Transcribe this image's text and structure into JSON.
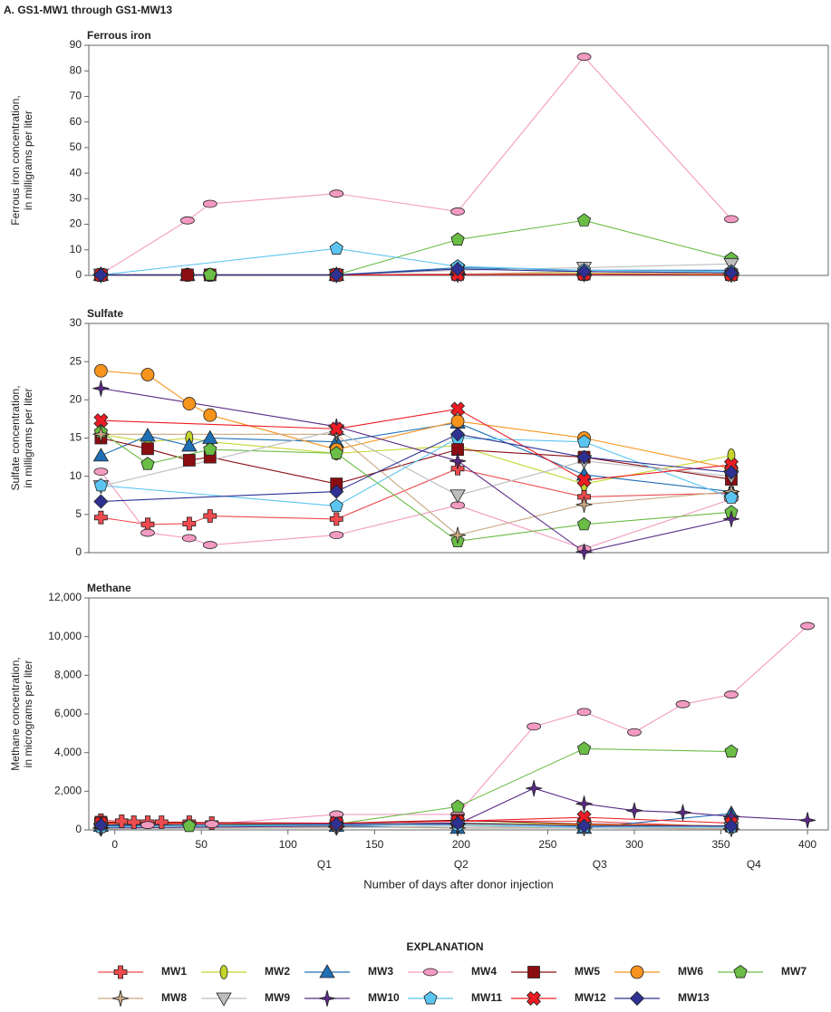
{
  "title": "A. GS1-MW1 through GS1-MW13",
  "legend": {
    "title": "EXPLANATION",
    "entries": [
      {
        "name": "MW1",
        "color": "#ee4b4f",
        "marker": "plus"
      },
      {
        "name": "MW2",
        "color": "#c5d52b",
        "marker": "ellipse-v"
      },
      {
        "name": "MW3",
        "color": "#1f6fb5",
        "marker": "triangle"
      },
      {
        "name": "MW4",
        "color": "#f39ac2",
        "marker": "ellipse-h"
      },
      {
        "name": "MW5",
        "color": "#8b0d12",
        "marker": "square"
      },
      {
        "name": "MW6",
        "color": "#f7941d",
        "marker": "circle"
      },
      {
        "name": "MW7",
        "color": "#6abd45",
        "marker": "pentagon"
      },
      {
        "name": "MW8",
        "color": "#c9a883",
        "marker": "star4"
      },
      {
        "name": "MW9",
        "color": "#bdbdbd",
        "marker": "triangle-down"
      },
      {
        "name": "MW10",
        "color": "#5b2a86",
        "marker": "star4"
      },
      {
        "name": "MW11",
        "color": "#5bc5f2",
        "marker": "pentagon"
      },
      {
        "name": "MW12",
        "color": "#ed1c24",
        "marker": "x"
      },
      {
        "name": "MW13",
        "color": "#2e3192",
        "marker": "diamond"
      }
    ]
  },
  "chart_data": [
    {
      "type": "line",
      "title": "Ferrous iron",
      "ylabel": [
        "Ferrous iron concentration,",
        "in milligrams per liter"
      ],
      "xlim": [
        -15,
        412
      ],
      "ylim": [
        0,
        90
      ],
      "yticks": [
        0,
        10,
        20,
        30,
        40,
        50,
        60,
        70,
        80,
        90
      ],
      "series": [
        {
          "x": [
            -8,
            42,
            55,
            128,
            198,
            271,
            356
          ],
          "values": [
            0.2,
            0.2,
            0.2,
            0.2,
            0.5,
            0.5,
            0.3
          ]
        },
        {
          "x": [
            -8,
            128,
            198,
            271,
            356
          ],
          "values": [
            0.3,
            0.2,
            0.5,
            0.8,
            0.5
          ]
        },
        {
          "x": [
            -8,
            42,
            128,
            198,
            271,
            356
          ],
          "values": [
            0.2,
            0.2,
            0.2,
            3,
            2,
            2
          ]
        },
        {
          "x": [
            -8,
            42,
            55,
            128,
            198,
            271,
            356
          ],
          "values": [
            0.5,
            21.5,
            28,
            32,
            25,
            85.5,
            22
          ]
        },
        {
          "x": [
            -8,
            42,
            55,
            128,
            198,
            271,
            356
          ],
          "values": [
            0.2,
            0.2,
            0.2,
            0.2,
            0.4,
            0.5,
            0.3
          ]
        },
        {
          "x": [
            -8,
            128,
            198,
            271,
            356
          ],
          "values": [
            0.2,
            0.2,
            0.5,
            0.5,
            0.3
          ]
        },
        {
          "x": [
            -8,
            55,
            128,
            198,
            271,
            356
          ],
          "values": [
            0.2,
            0.3,
            0.2,
            14,
            21.5,
            6.5
          ]
        },
        {
          "x": [
            -8,
            128,
            198,
            271,
            356
          ],
          "values": [
            0.2,
            0.2,
            0.5,
            1.5,
            1
          ]
        },
        {
          "x": [
            -8,
            128,
            198,
            271,
            356
          ],
          "values": [
            0.3,
            0.2,
            2,
            3,
            4.5
          ]
        },
        {
          "x": [
            -8,
            128,
            198,
            271,
            356
          ],
          "values": [
            0.2,
            0.2,
            0.3,
            0.5,
            0.3
          ]
        },
        {
          "x": [
            -8,
            128,
            198,
            271,
            356
          ],
          "values": [
            0.2,
            10.5,
            3.5,
            2,
            1.5
          ]
        },
        {
          "x": [
            -8,
            128,
            198,
            271,
            356
          ],
          "values": [
            0.2,
            0.2,
            0.3,
            0.5,
            0.3
          ]
        },
        {
          "x": [
            -8,
            128,
            198,
            271,
            356
          ],
          "values": [
            0.2,
            0.2,
            2.5,
            1.5,
            1
          ]
        }
      ]
    },
    {
      "type": "line",
      "title": "Sulfate",
      "ylabel": [
        "Sulfate concentration,",
        "in milligrams per liter"
      ],
      "xlim": [
        -15,
        412
      ],
      "ylim": [
        0,
        30
      ],
      "yticks": [
        0,
        5,
        10,
        15,
        20,
        25,
        30
      ],
      "series": [
        {
          "x": [
            -8,
            19,
            43,
            55,
            128,
            198,
            271,
            356
          ],
          "values": [
            4.6,
            3.7,
            3.8,
            4.8,
            4.4,
            11,
            7.3,
            7.8
          ]
        },
        {
          "x": [
            -8,
            19,
            43,
            55,
            128,
            198,
            271,
            356
          ],
          "values": [
            15.5,
            14.5,
            15,
            14.5,
            13,
            14,
            9,
            12.7
          ]
        },
        {
          "x": [
            -8,
            19,
            43,
            55,
            128,
            198,
            271,
            356
          ],
          "values": [
            12.7,
            15.3,
            14,
            15,
            14.5,
            17,
            10.2,
            8
          ]
        },
        {
          "x": [
            -8,
            19,
            43,
            55,
            128,
            198,
            271,
            356
          ],
          "values": [
            10.6,
            2.6,
            1.9,
            1,
            2.3,
            6.2,
            0.5,
            7
          ]
        },
        {
          "x": [
            -8,
            19,
            43,
            55,
            128,
            198,
            271,
            356
          ],
          "values": [
            15,
            13.6,
            12.1,
            12.5,
            9,
            13.5,
            12.5,
            9.6
          ]
        },
        {
          "x": [
            -8,
            19,
            43,
            55,
            128,
            198,
            271,
            356
          ],
          "values": [
            23.8,
            23.3,
            19.5,
            18,
            13.5,
            17.2,
            15,
            11
          ]
        },
        {
          "x": [
            -8,
            19,
            55,
            128,
            198,
            271,
            356
          ],
          "values": [
            15.8,
            11.6,
            13.5,
            13,
            1.5,
            3.7,
            5.3
          ]
        },
        {
          "x": [
            -8,
            128,
            198,
            271,
            356
          ],
          "values": [
            15.5,
            15.5,
            2.3,
            6.3,
            8
          ]
        },
        {
          "x": [
            -8,
            128,
            198,
            271,
            356
          ],
          "values": [
            8.7,
            16,
            7.5,
            12,
            10
          ]
        },
        {
          "x": [
            -8,
            128,
            198,
            271,
            356
          ],
          "values": [
            21.5,
            16.5,
            12,
            0.1,
            4.4
          ]
        },
        {
          "x": [
            -8,
            128,
            198,
            271,
            356
          ],
          "values": [
            8.8,
            6.1,
            15,
            14.5,
            7.2
          ]
        },
        {
          "x": [
            -8,
            128,
            198,
            271,
            356
          ],
          "values": [
            17.3,
            16.2,
            18.8,
            9.5,
            11.5
          ]
        },
        {
          "x": [
            -8,
            128,
            198,
            271,
            356
          ],
          "values": [
            6.7,
            8,
            15.5,
            12.5,
            10.5
          ]
        }
      ]
    },
    {
      "type": "line",
      "title": "Methane",
      "ylabel": [
        "Methane concentration,",
        "in micrograms per liter"
      ],
      "xlabel": "Number of days after donor injection",
      "xlim": [
        -15,
        412
      ],
      "ylim": [
        0,
        12000
      ],
      "xticks": [
        0,
        50,
        100,
        150,
        200,
        250,
        300,
        350,
        400
      ],
      "quarters": [
        {
          "value": 121,
          "label": "Q1"
        },
        {
          "value": 200,
          "label": "Q2"
        },
        {
          "value": 280,
          "label": "Q3"
        },
        {
          "value": 369,
          "label": "Q4"
        }
      ],
      "yticks": [
        0,
        {
          "value": 2000,
          "label": "2,000"
        },
        {
          "value": 4000,
          "label": "4,000"
        },
        {
          "value": 6000,
          "label": "6,000"
        },
        {
          "value": 8000,
          "label": "8,000"
        },
        {
          "value": 10000,
          "label": "10,000"
        },
        {
          "value": 12000,
          "label": "12,000"
        }
      ],
      "series": [
        {
          "x": [
            -8,
            4,
            11,
            19,
            27,
            43,
            56,
            128,
            198,
            271,
            356
          ],
          "values": [
            500,
            450,
            400,
            400,
            400,
            400,
            350,
            350,
            450,
            450,
            150
          ]
        },
        {
          "x": [
            -8,
            128,
            198,
            271,
            356
          ],
          "values": [
            300,
            300,
            350,
            300,
            200
          ]
        },
        {
          "x": [
            -8,
            128,
            198,
            271,
            356
          ],
          "values": [
            200,
            200,
            100,
            100,
            850
          ]
        },
        {
          "x": [
            -8,
            19,
            43,
            56,
            128,
            198,
            242,
            271,
            300,
            328,
            356,
            400
          ],
          "values": [
            300,
            250,
            300,
            300,
            800,
            800,
            5350,
            6100,
            5050,
            6500,
            7000,
            10550
          ]
        },
        {
          "x": [
            -8,
            128,
            198,
            271,
            356
          ],
          "values": [
            400,
            350,
            500,
            300,
            200
          ]
        },
        {
          "x": [
            -8,
            128,
            198,
            271,
            356
          ],
          "values": [
            300,
            250,
            300,
            250,
            200
          ]
        },
        {
          "x": [
            -8,
            43,
            128,
            198,
            271,
            356
          ],
          "values": [
            150,
            200,
            300,
            1200,
            4200,
            4050
          ]
        },
        {
          "x": [
            -8,
            128,
            198,
            271,
            356
          ],
          "values": [
            100,
            150,
            100,
            100,
            50
          ]
        },
        {
          "x": [
            -8,
            128,
            198,
            271,
            356
          ],
          "values": [
            50,
            100,
            200,
            100,
            100
          ]
        },
        {
          "x": [
            -8,
            128,
            198,
            242,
            271,
            300,
            328,
            356,
            400
          ],
          "values": [
            100,
            200,
            300,
            2150,
            1350,
            1000,
            900,
            700,
            500
          ]
        },
        {
          "x": [
            -8,
            128,
            198,
            271,
            356
          ],
          "values": [
            150,
            250,
            250,
            150,
            150
          ]
        },
        {
          "x": [
            -8,
            128,
            198,
            271,
            356
          ],
          "values": [
            350,
            350,
            450,
            650,
            350
          ]
        },
        {
          "x": [
            -8,
            128,
            198,
            271,
            356
          ],
          "values": [
            250,
            300,
            350,
            200,
            200
          ]
        }
      ]
    }
  ]
}
